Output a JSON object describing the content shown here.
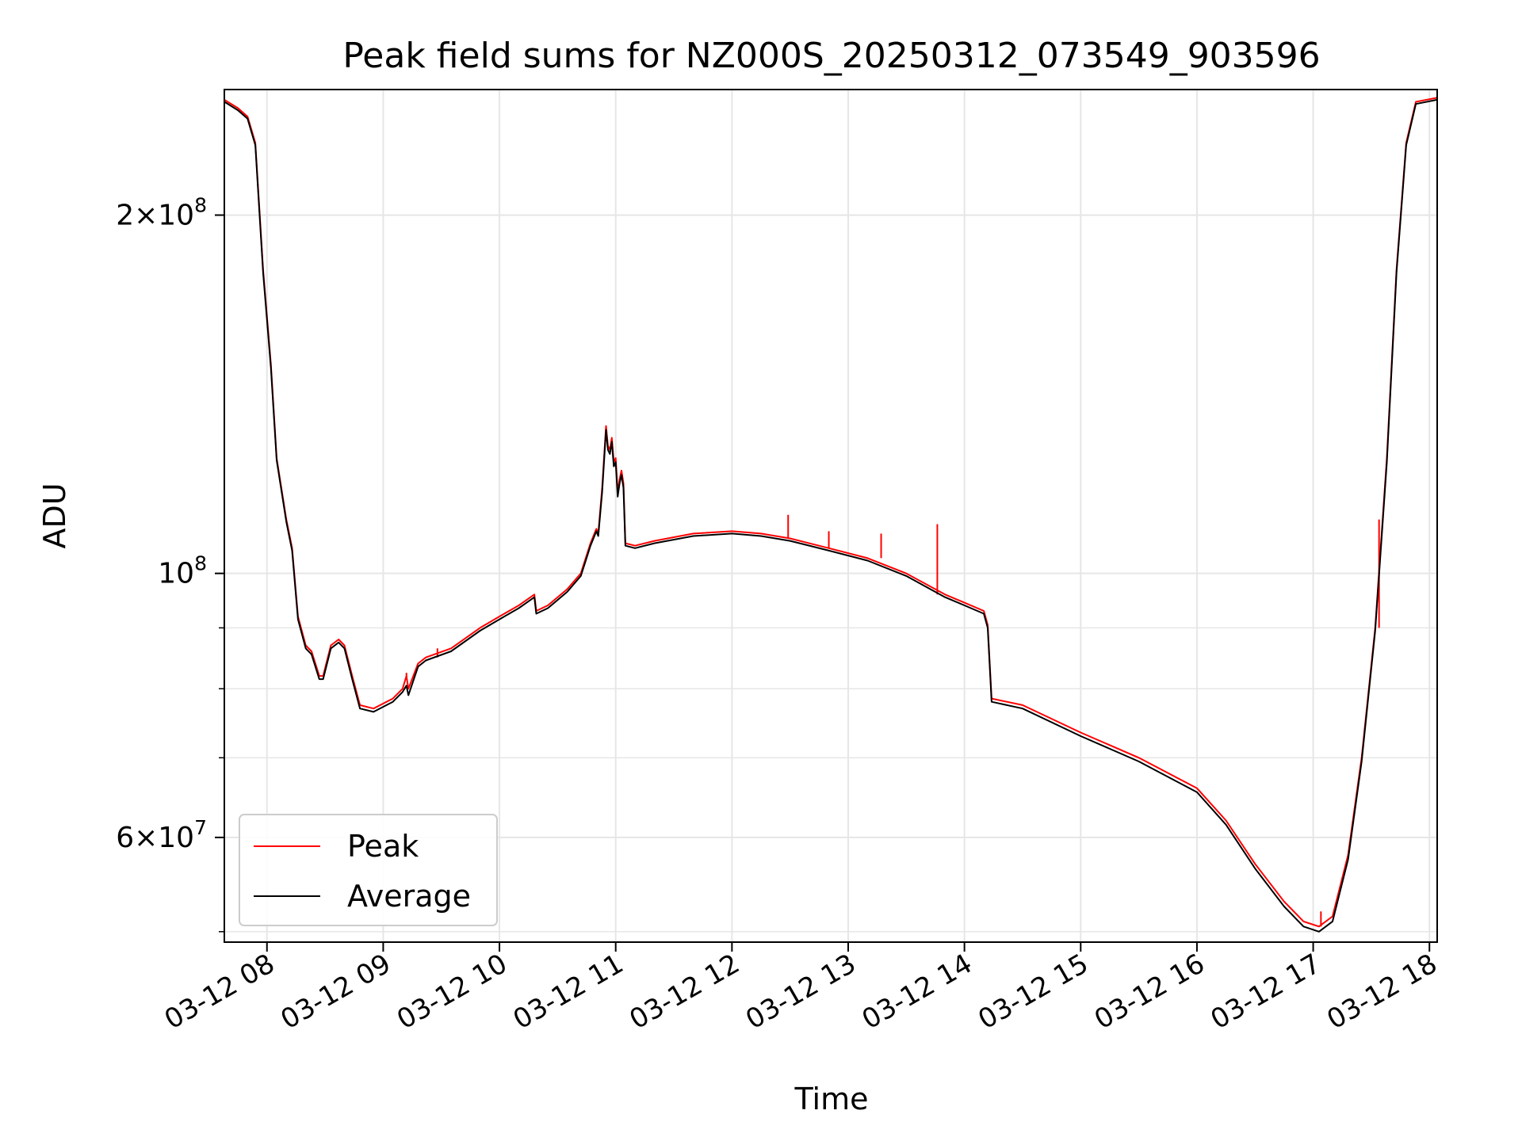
{
  "chart_data": {
    "type": "line",
    "title": "Peak field sums for NZ000S_20250312_073549_903596",
    "xlabel": "Time",
    "ylabel": "ADU",
    "y_scale": "log",
    "ylim": [
      49000000,
      255000000
    ],
    "xlim": [
      "2025-03-12 07:38",
      "2025-03-12 18:04"
    ],
    "grid": true,
    "legend_position": "lower-left",
    "x_ticks": [
      {
        "t": "2025-03-12 08:00",
        "label": "03-12 08"
      },
      {
        "t": "2025-03-12 09:00",
        "label": "03-12 09"
      },
      {
        "t": "2025-03-12 10:00",
        "label": "03-12 10"
      },
      {
        "t": "2025-03-12 11:00",
        "label": "03-12 11"
      },
      {
        "t": "2025-03-12 12:00",
        "label": "03-12 12"
      },
      {
        "t": "2025-03-12 13:00",
        "label": "03-12 13"
      },
      {
        "t": "2025-03-12 14:00",
        "label": "03-12 14"
      },
      {
        "t": "2025-03-12 15:00",
        "label": "03-12 15"
      },
      {
        "t": "2025-03-12 16:00",
        "label": "03-12 16"
      },
      {
        "t": "2025-03-12 17:00",
        "label": "03-12 17"
      },
      {
        "t": "2025-03-12 18:00",
        "label": "03-12 18"
      }
    ],
    "y_major_ticks": [
      {
        "value": 60000000,
        "mantissa": "6",
        "exponent": "7"
      },
      {
        "value": 100000000,
        "mantissa": "",
        "exponent": "8"
      },
      {
        "value": 200000000,
        "mantissa": "2",
        "exponent": "8"
      }
    ],
    "y_minor_ticks": [
      50000000,
      70000000,
      80000000,
      90000000,
      300000000
    ],
    "series": [
      {
        "name": "Peak",
        "color": "#ff0000",
        "points": [
          [
            "2025-03-12 07:38",
            250000000
          ],
          [
            "2025-03-12 07:45",
            246000000
          ],
          [
            "2025-03-12 07:50",
            242000000
          ],
          [
            "2025-03-12 07:54",
            230000000
          ],
          [
            "2025-03-12 07:58",
            180000000
          ],
          [
            "2025-03-12 08:02",
            150000000
          ],
          [
            "2025-03-12 08:05",
            125000000
          ],
          [
            "2025-03-12 08:10",
            111000000
          ],
          [
            "2025-03-12 08:13",
            105000000
          ],
          [
            "2025-03-12 08:16",
            92000000
          ],
          [
            "2025-03-12 08:20",
            87000000
          ],
          [
            "2025-03-12 08:23",
            86000000
          ],
          [
            "2025-03-12 08:27",
            82000000
          ],
          [
            "2025-03-12 08:29",
            82000000
          ],
          [
            "2025-03-12 08:33",
            87000000
          ],
          [
            "2025-03-12 08:37",
            88000000
          ],
          [
            "2025-03-12 08:40",
            87000000
          ],
          [
            "2025-03-12 08:44",
            82000000
          ],
          [
            "2025-03-12 08:48",
            77500000
          ],
          [
            "2025-03-12 08:55",
            77000000
          ],
          [
            "2025-03-12 09:05",
            78500000
          ],
          [
            "2025-03-12 09:10",
            80000000
          ],
          [
            "2025-03-12 09:12",
            82000000
          ],
          [
            "2025-03-12 09:13",
            80000000
          ],
          [
            "2025-03-12 09:18",
            84000000
          ],
          [
            "2025-03-12 09:22",
            85000000
          ],
          [
            "2025-03-12 09:35",
            86500000
          ],
          [
            "2025-03-12 09:50",
            90000000
          ],
          [
            "2025-03-12 10:00",
            92000000
          ],
          [
            "2025-03-12 10:10",
            94000000
          ],
          [
            "2025-03-12 10:18",
            96000000
          ],
          [
            "2025-03-12 10:19",
            93000000
          ],
          [
            "2025-03-12 10:25",
            94000000
          ],
          [
            "2025-03-12 10:35",
            97000000
          ],
          [
            "2025-03-12 10:42",
            100000000
          ],
          [
            "2025-03-12 10:47",
            106000000
          ],
          [
            "2025-03-12 10:50",
            109000000
          ],
          [
            "2025-03-12 10:51",
            108000000
          ],
          [
            "2025-03-12 10:53",
            118000000
          ],
          [
            "2025-03-12 10:55",
            133000000
          ],
          [
            "2025-03-12 10:56",
            128000000
          ],
          [
            "2025-03-12 10:57",
            127000000
          ],
          [
            "2025-03-12 10:58",
            130000000
          ],
          [
            "2025-03-12 10:59",
            124000000
          ],
          [
            "2025-03-12 11:00",
            125000000
          ],
          [
            "2025-03-12 11:01",
            117000000
          ],
          [
            "2025-03-12 11:02",
            120000000
          ],
          [
            "2025-03-12 11:03",
            122000000
          ],
          [
            "2025-03-12 11:04",
            119000000
          ],
          [
            "2025-03-12 11:05",
            106000000
          ],
          [
            "2025-03-12 11:10",
            105500000
          ],
          [
            "2025-03-12 11:20",
            106500000
          ],
          [
            "2025-03-12 11:40",
            108000000
          ],
          [
            "2025-03-12 12:00",
            108500000
          ],
          [
            "2025-03-12 12:15",
            108000000
          ],
          [
            "2025-03-12 12:30",
            107000000
          ],
          [
            "2025-03-12 12:50",
            105000000
          ],
          [
            "2025-03-12 13:10",
            103000000
          ],
          [
            "2025-03-12 13:30",
            100000000
          ],
          [
            "2025-03-12 13:50",
            96000000
          ],
          [
            "2025-03-12 14:00",
            94500000
          ],
          [
            "2025-03-12 14:10",
            93000000
          ],
          [
            "2025-03-12 14:12",
            90500000
          ],
          [
            "2025-03-12 14:14",
            78500000
          ],
          [
            "2025-03-12 14:30",
            77500000
          ],
          [
            "2025-03-12 15:00",
            73500000
          ],
          [
            "2025-03-12 15:30",
            70000000
          ],
          [
            "2025-03-12 16:00",
            66000000
          ],
          [
            "2025-03-12 16:15",
            62000000
          ],
          [
            "2025-03-12 16:30",
            57000000
          ],
          [
            "2025-03-12 16:45",
            53000000
          ],
          [
            "2025-03-12 16:55",
            51000000
          ],
          [
            "2025-03-12 17:03",
            50500000
          ],
          [
            "2025-03-12 17:10",
            51500000
          ],
          [
            "2025-03-12 17:18",
            58000000
          ],
          [
            "2025-03-12 17:25",
            70000000
          ],
          [
            "2025-03-12 17:32",
            90000000
          ],
          [
            "2025-03-12 17:38",
            125000000
          ],
          [
            "2025-03-12 17:43",
            180000000
          ],
          [
            "2025-03-12 17:48",
            230000000
          ],
          [
            "2025-03-12 17:53",
            249000000
          ],
          [
            "2025-03-12 18:04",
            251000000
          ]
        ],
        "spikes": [
          [
            "2025-03-12 09:12",
            82500000
          ],
          [
            "2025-03-12 09:28",
            86500000
          ],
          [
            "2025-03-12 12:29",
            112000000
          ],
          [
            "2025-03-12 12:50",
            108500000
          ],
          [
            "2025-03-12 13:17",
            108000000
          ],
          [
            "2025-03-12 13:46",
            110000000
          ],
          [
            "2025-03-12 17:04",
            52000000
          ],
          [
            "2025-03-12 17:34",
            111000000
          ]
        ]
      },
      {
        "name": "Average",
        "color": "#000000",
        "points": [
          [
            "2025-03-12 07:38",
            249000000
          ],
          [
            "2025-03-12 07:45",
            245000000
          ],
          [
            "2025-03-12 07:50",
            241000000
          ],
          [
            "2025-03-12 07:54",
            229000000
          ],
          [
            "2025-03-12 07:58",
            179000000
          ],
          [
            "2025-03-12 08:02",
            149000000
          ],
          [
            "2025-03-12 08:05",
            124500000
          ],
          [
            "2025-03-12 08:10",
            110500000
          ],
          [
            "2025-03-12 08:13",
            104500000
          ],
          [
            "2025-03-12 08:16",
            91500000
          ],
          [
            "2025-03-12 08:20",
            86500000
          ],
          [
            "2025-03-12 08:23",
            85500000
          ],
          [
            "2025-03-12 08:27",
            81500000
          ],
          [
            "2025-03-12 08:29",
            81500000
          ],
          [
            "2025-03-12 08:33",
            86500000
          ],
          [
            "2025-03-12 08:37",
            87500000
          ],
          [
            "2025-03-12 08:40",
            86500000
          ],
          [
            "2025-03-12 08:44",
            81500000
          ],
          [
            "2025-03-12 08:48",
            77000000
          ],
          [
            "2025-03-12 08:55",
            76500000
          ],
          [
            "2025-03-12 09:05",
            78000000
          ],
          [
            "2025-03-12 09:10",
            79500000
          ],
          [
            "2025-03-12 09:12",
            80500000
          ],
          [
            "2025-03-12 09:13",
            79000000
          ],
          [
            "2025-03-12 09:18",
            83500000
          ],
          [
            "2025-03-12 09:22",
            84500000
          ],
          [
            "2025-03-12 09:35",
            86000000
          ],
          [
            "2025-03-12 09:50",
            89500000
          ],
          [
            "2025-03-12 10:00",
            91500000
          ],
          [
            "2025-03-12 10:10",
            93500000
          ],
          [
            "2025-03-12 10:18",
            95500000
          ],
          [
            "2025-03-12 10:19",
            92500000
          ],
          [
            "2025-03-12 10:25",
            93500000
          ],
          [
            "2025-03-12 10:35",
            96500000
          ],
          [
            "2025-03-12 10:42",
            99500000
          ],
          [
            "2025-03-12 10:47",
            105500000
          ],
          [
            "2025-03-12 10:50",
            108500000
          ],
          [
            "2025-03-12 10:51",
            107500000
          ],
          [
            "2025-03-12 10:53",
            117000000
          ],
          [
            "2025-03-12 10:55",
            132000000
          ],
          [
            "2025-03-12 10:56",
            127000000
          ],
          [
            "2025-03-12 10:57",
            126000000
          ],
          [
            "2025-03-12 10:58",
            129000000
          ],
          [
            "2025-03-12 10:59",
            123000000
          ],
          [
            "2025-03-12 11:00",
            124000000
          ],
          [
            "2025-03-12 11:01",
            116000000
          ],
          [
            "2025-03-12 11:02",
            119000000
          ],
          [
            "2025-03-12 11:03",
            121000000
          ],
          [
            "2025-03-12 11:04",
            118000000
          ],
          [
            "2025-03-12 11:05",
            105500000
          ],
          [
            "2025-03-12 11:10",
            105000000
          ],
          [
            "2025-03-12 11:20",
            106000000
          ],
          [
            "2025-03-12 11:40",
            107500000
          ],
          [
            "2025-03-12 12:00",
            108000000
          ],
          [
            "2025-03-12 12:15",
            107500000
          ],
          [
            "2025-03-12 12:30",
            106500000
          ],
          [
            "2025-03-12 12:50",
            104500000
          ],
          [
            "2025-03-12 13:10",
            102500000
          ],
          [
            "2025-03-12 13:30",
            99500000
          ],
          [
            "2025-03-12 13:50",
            95500000
          ],
          [
            "2025-03-12 14:00",
            94000000
          ],
          [
            "2025-03-12 14:10",
            92500000
          ],
          [
            "2025-03-12 14:12",
            90000000
          ],
          [
            "2025-03-12 14:14",
            78000000
          ],
          [
            "2025-03-12 14:30",
            77000000
          ],
          [
            "2025-03-12 15:00",
            73000000
          ],
          [
            "2025-03-12 15:30",
            69500000
          ],
          [
            "2025-03-12 16:00",
            65500000
          ],
          [
            "2025-03-12 16:15",
            61500000
          ],
          [
            "2025-03-12 16:30",
            56500000
          ],
          [
            "2025-03-12 16:45",
            52500000
          ],
          [
            "2025-03-12 16:55",
            50500000
          ],
          [
            "2025-03-12 17:03",
            50000000
          ],
          [
            "2025-03-12 17:10",
            51000000
          ],
          [
            "2025-03-12 17:18",
            57500000
          ],
          [
            "2025-03-12 17:25",
            69500000
          ],
          [
            "2025-03-12 17:32",
            89500000
          ],
          [
            "2025-03-12 17:38",
            124000000
          ],
          [
            "2025-03-12 17:43",
            179000000
          ],
          [
            "2025-03-12 17:48",
            229000000
          ],
          [
            "2025-03-12 17:53",
            248000000
          ],
          [
            "2025-03-12 18:04",
            250000000
          ]
        ]
      }
    ]
  }
}
